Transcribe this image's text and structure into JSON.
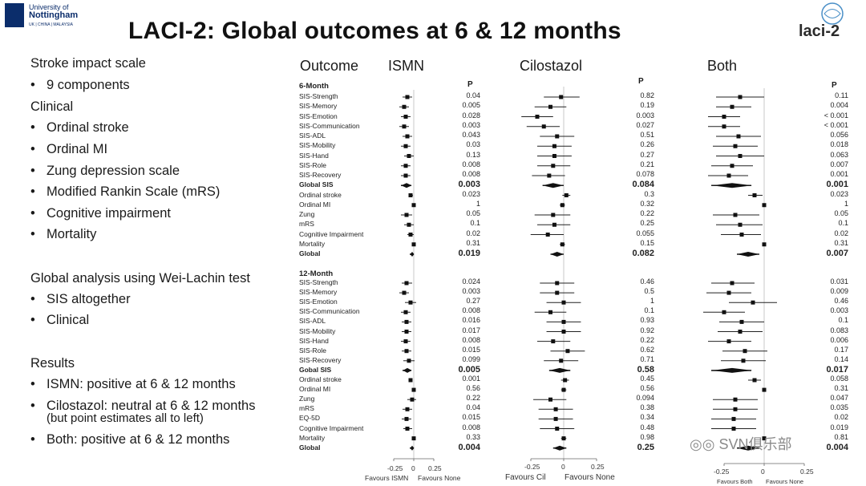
{
  "logo": {
    "line1": "University of",
    "line2": "Nottingham",
    "line3": "UK | CHINA | MALAYSIA"
  },
  "title": "LACI-2: Global outcomes at 6 & 12 months",
  "brand": {
    "word": "laci-2",
    "icon": "brain-logo-icon"
  },
  "left": {
    "heading1": "Stroke impact scale",
    "b1": "9 components",
    "heading2": "Clinical",
    "b2": "Ordinal stroke",
    "b3": "Ordinal MI",
    "b4": "Zung depression scale",
    "b5": "Modified Rankin Scale (mRS)",
    "b6": "Cognitive impairment",
    "b7": "Mortality",
    "heading3": "Global analysis using Wei-Lachin test",
    "b8": "SIS altogether",
    "b9": "Clinical",
    "heading4": "Results",
    "b10": "ISMN: positive at 6 & 12 months",
    "b11a": "Cilostazol: neutral at 6 & 12 months",
    "b11b": "(but point estimates all to left)",
    "b12": "Both: positive at 6 & 12 months"
  },
  "columns": {
    "outcome": "Outcome",
    "ismn": "ISMN",
    "cil": "Cilostazol",
    "both": "Both"
  },
  "p_label": "P",
  "sections": {
    "m6": "6-Month",
    "m12": "12-Month"
  },
  "rows6": [
    "SIS-Strength",
    "SIS-Memory",
    "SIS-Emotion",
    "SIS-Communication",
    "SIS-ADL",
    "SIS-Mobility",
    "SIS-Hand",
    "SIS-Role",
    "SIS-Recovery",
    "Global SIS",
    "Ordinal stroke",
    "Ordinal MI",
    "Zung",
    "mRS",
    "Cognitive Impairment",
    "Mortality",
    "Global"
  ],
  "rows12": [
    "SIS-Strength",
    "SIS-Memory",
    "SIS-Emotion",
    "SIS-Communication",
    "SIS-ADL",
    "SIS-Mobility",
    "SIS-Hand",
    "SIS-Role",
    "SIS-Recovery",
    "Gobal SIS",
    "Ordinal stroke",
    "Ordinal MI",
    "Zung",
    "mRS",
    "EQ-5D",
    "Cognitive Impairment",
    "Mortality",
    "Global"
  ],
  "p": {
    "ismn6": [
      "0.04",
      "0.005",
      "0.028",
      "0.003",
      "0.043",
      "0.03",
      "0.13",
      "0.008",
      "0.008",
      "0.003",
      "0.023",
      "1",
      "0.05",
      "0.1",
      "0.02",
      "0.31",
      "0.019"
    ],
    "ismn12": [
      "0.024",
      "0.003",
      "0.27",
      "0.008",
      "0.016",
      "0.017",
      "0.008",
      "0.015",
      "0.099",
      "0.005",
      "0.001",
      "0.56",
      "0.22",
      "0.04",
      "0.015",
      "0.008",
      "0.33",
      "0.004"
    ],
    "cil6": [
      "0.82",
      "0.19",
      "0.003",
      "0.027",
      "0.51",
      "0.26",
      "0.27",
      "0.21",
      "0.078",
      "0.084",
      "0.3",
      "0.32",
      "0.22",
      "0.25",
      "0.055",
      "0.15",
      "0.082"
    ],
    "cil12": [
      "0.46",
      "0.5",
      "1",
      "0.1",
      "0.93",
      "0.92",
      "0.22",
      "0.62",
      "0.71",
      "0.58",
      "0.45",
      "0.56",
      "0.094",
      "0.38",
      "0.34",
      "0.48",
      "0.98",
      "0.25"
    ],
    "both6": [
      "0.11",
      "0.004",
      "< 0.001",
      "< 0.001",
      "0.056",
      "0.018",
      "0.063",
      "0.007",
      "0.001",
      "0.001",
      "0.023",
      "1",
      "0.05",
      "0.1",
      "0.02",
      "0.31",
      "0.007"
    ],
    "both12": [
      "0.031",
      "0.009",
      "0.46",
      "0.003",
      "0.1",
      "0.083",
      "0.006",
      "0.17",
      "0.14",
      "0.017",
      "0.058",
      "0.31",
      "0.047",
      "0.035",
      "0.02",
      "0.019",
      "0.81",
      "0.004"
    ]
  },
  "bold6": [
    9,
    16
  ],
  "bold12": [
    9,
    17
  ],
  "axis": {
    "ticks": [
      "-0.25",
      "0",
      "0.25"
    ],
    "ismn_left": "Favours ISMN",
    "ismn_right": "Favours None",
    "cil_left": "Favours Cil",
    "cil_right": "Favours None",
    "both_left": "Favours Both",
    "both_right": "Favours None"
  },
  "forest": {
    "ismn6": [
      [
        -0.08,
        -0.14,
        -0.02
      ],
      [
        -0.12,
        -0.18,
        -0.06
      ],
      [
        -0.1,
        -0.16,
        -0.04
      ],
      [
        -0.12,
        -0.18,
        -0.06
      ],
      [
        -0.08,
        -0.14,
        -0.02
      ],
      [
        -0.1,
        -0.16,
        -0.04
      ],
      [
        -0.06,
        -0.12,
        0.0
      ],
      [
        -0.1,
        -0.16,
        -0.04
      ],
      [
        -0.1,
        -0.16,
        -0.04
      ],
      [
        -0.09,
        -0.16,
        -0.03
      ],
      [
        -0.04,
        -0.06,
        -0.01
      ],
      [
        0.0,
        -0.01,
        0.01
      ],
      [
        -0.09,
        -0.16,
        -0.02
      ],
      [
        -0.06,
        -0.12,
        0.0
      ],
      [
        -0.04,
        -0.08,
        0.0
      ],
      [
        0.0,
        -0.01,
        0.01
      ],
      [
        -0.02,
        -0.05,
        0.0
      ]
    ],
    "ismn12": [
      [
        -0.09,
        -0.15,
        -0.02
      ],
      [
        -0.12,
        -0.18,
        -0.06
      ],
      [
        -0.04,
        -0.11,
        0.03
      ],
      [
        -0.1,
        -0.16,
        -0.04
      ],
      [
        -0.09,
        -0.15,
        -0.03
      ],
      [
        -0.09,
        -0.15,
        -0.03
      ],
      [
        -0.1,
        -0.16,
        -0.04
      ],
      [
        -0.09,
        -0.15,
        -0.03
      ],
      [
        -0.06,
        -0.13,
        0.01
      ],
      [
        -0.08,
        -0.14,
        -0.03
      ],
      [
        -0.04,
        -0.06,
        -0.02
      ],
      [
        0.0,
        -0.01,
        0.01
      ],
      [
        -0.02,
        -0.08,
        0.03
      ],
      [
        -0.08,
        -0.14,
        -0.02
      ],
      [
        -0.09,
        -0.15,
        -0.03
      ],
      [
        -0.08,
        -0.13,
        -0.02
      ],
      [
        0.0,
        -0.01,
        0.01
      ],
      [
        -0.02,
        -0.05,
        0.0
      ]
    ],
    "cil6": [
      [
        -0.02,
        -0.15,
        0.12
      ],
      [
        -0.1,
        -0.22,
        0.02
      ],
      [
        -0.2,
        -0.32,
        -0.08
      ],
      [
        -0.15,
        -0.28,
        -0.03
      ],
      [
        -0.05,
        -0.18,
        0.08
      ],
      [
        -0.07,
        -0.2,
        0.06
      ],
      [
        -0.07,
        -0.2,
        0.06
      ],
      [
        -0.08,
        -0.2,
        0.05
      ],
      [
        -0.11,
        -0.24,
        0.01
      ],
      [
        -0.08,
        -0.16,
        0.0
      ],
      [
        0.02,
        -0.01,
        0.05
      ],
      [
        -0.01,
        -0.03,
        0.01
      ],
      [
        -0.08,
        -0.22,
        0.05
      ],
      [
        -0.07,
        -0.2,
        0.05
      ],
      [
        -0.12,
        -0.25,
        0.0
      ],
      [
        -0.01,
        -0.03,
        0.01
      ],
      [
        -0.05,
        -0.1,
        0.0
      ]
    ],
    "cil12": [
      [
        -0.05,
        -0.18,
        0.08
      ],
      [
        -0.05,
        -0.18,
        0.08
      ],
      [
        0.0,
        -0.13,
        0.13
      ],
      [
        -0.1,
        -0.22,
        0.02
      ],
      [
        0.0,
        -0.13,
        0.13
      ],
      [
        0.0,
        -0.13,
        0.13
      ],
      [
        -0.08,
        -0.2,
        0.05
      ],
      [
        0.03,
        -0.1,
        0.16
      ],
      [
        -0.02,
        -0.15,
        0.11
      ],
      [
        -0.03,
        -0.11,
        0.05
      ],
      [
        0.01,
        -0.02,
        0.04
      ],
      [
        0.0,
        -0.02,
        0.02
      ],
      [
        -0.1,
        -0.23,
        0.02
      ],
      [
        -0.06,
        -0.19,
        0.07
      ],
      [
        -0.06,
        -0.19,
        0.07
      ],
      [
        -0.05,
        -0.18,
        0.08
      ],
      [
        0.0,
        -0.02,
        0.02
      ],
      [
        -0.03,
        -0.08,
        0.02
      ]
    ],
    "both6": [
      [
        -0.15,
        -0.3,
        0.0
      ],
      [
        -0.2,
        -0.3,
        -0.08
      ],
      [
        -0.25,
        -0.35,
        -0.15
      ],
      [
        -0.25,
        -0.35,
        -0.15
      ],
      [
        -0.16,
        -0.3,
        -0.02
      ],
      [
        -0.18,
        -0.32,
        -0.04
      ],
      [
        -0.15,
        -0.3,
        0.0
      ],
      [
        -0.2,
        -0.33,
        -0.07
      ],
      [
        -0.22,
        -0.35,
        -0.1
      ],
      [
        -0.2,
        -0.33,
        -0.08
      ],
      [
        -0.06,
        -0.1,
        -0.01
      ],
      [
        0.0,
        -0.01,
        0.01
      ],
      [
        -0.18,
        -0.32,
        -0.03
      ],
      [
        -0.15,
        -0.3,
        -0.01
      ],
      [
        -0.14,
        -0.27,
        -0.02
      ],
      [
        0.0,
        -0.01,
        0.01
      ],
      [
        -0.1,
        -0.17,
        -0.03
      ]
    ],
    "both12": [
      [
        -0.2,
        -0.33,
        -0.06
      ],
      [
        -0.22,
        -0.36,
        -0.08
      ],
      [
        -0.07,
        -0.22,
        0.08
      ],
      [
        -0.25,
        -0.38,
        -0.12
      ],
      [
        -0.14,
        -0.28,
        0.0
      ],
      [
        -0.15,
        -0.29,
        -0.01
      ],
      [
        -0.22,
        -0.35,
        -0.08
      ],
      [
        -0.12,
        -0.26,
        0.02
      ],
      [
        -0.13,
        -0.27,
        0.01
      ],
      [
        -0.2,
        -0.33,
        -0.08
      ],
      [
        -0.06,
        -0.1,
        -0.02
      ],
      [
        0.0,
        -0.01,
        0.01
      ],
      [
        -0.18,
        -0.32,
        -0.04
      ],
      [
        -0.18,
        -0.32,
        -0.04
      ],
      [
        -0.19,
        -0.33,
        -0.05
      ],
      [
        -0.19,
        -0.33,
        -0.05
      ],
      [
        0.0,
        -0.01,
        0.01
      ],
      [
        -0.1,
        -0.17,
        -0.03
      ]
    ]
  },
  "watermark": "SVN俱乐部",
  "watermark_icon": "wechat-icon"
}
